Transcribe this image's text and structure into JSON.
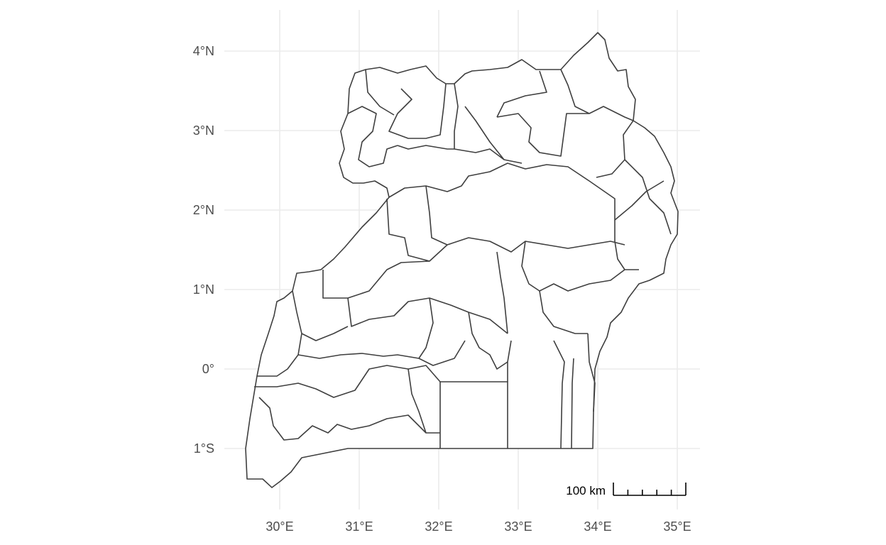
{
  "map": {
    "lon_ticks": [
      {
        "value": 30,
        "label": "30°E"
      },
      {
        "value": 31,
        "label": "31°E"
      },
      {
        "value": 32,
        "label": "32°E"
      },
      {
        "value": 33,
        "label": "33°E"
      },
      {
        "value": 34,
        "label": "34°E"
      },
      {
        "value": 35,
        "label": "35°E"
      }
    ],
    "lat_ticks": [
      {
        "value": 4,
        "label": "4°N"
      },
      {
        "value": 3,
        "label": "3°N"
      },
      {
        "value": 2,
        "label": "2°N"
      },
      {
        "value": 1,
        "label": "1°N"
      },
      {
        "value": 0,
        "label": "0°"
      },
      {
        "value": -1,
        "label": "1°S"
      }
    ],
    "scale_bar": {
      "label": "100 km",
      "divisions": 5
    },
    "colors": {
      "outline": "#3f3f3f",
      "grid": "#ebebeb",
      "fill": "#ffffff",
      "tick_text": "#4d4d4d"
    }
  }
}
